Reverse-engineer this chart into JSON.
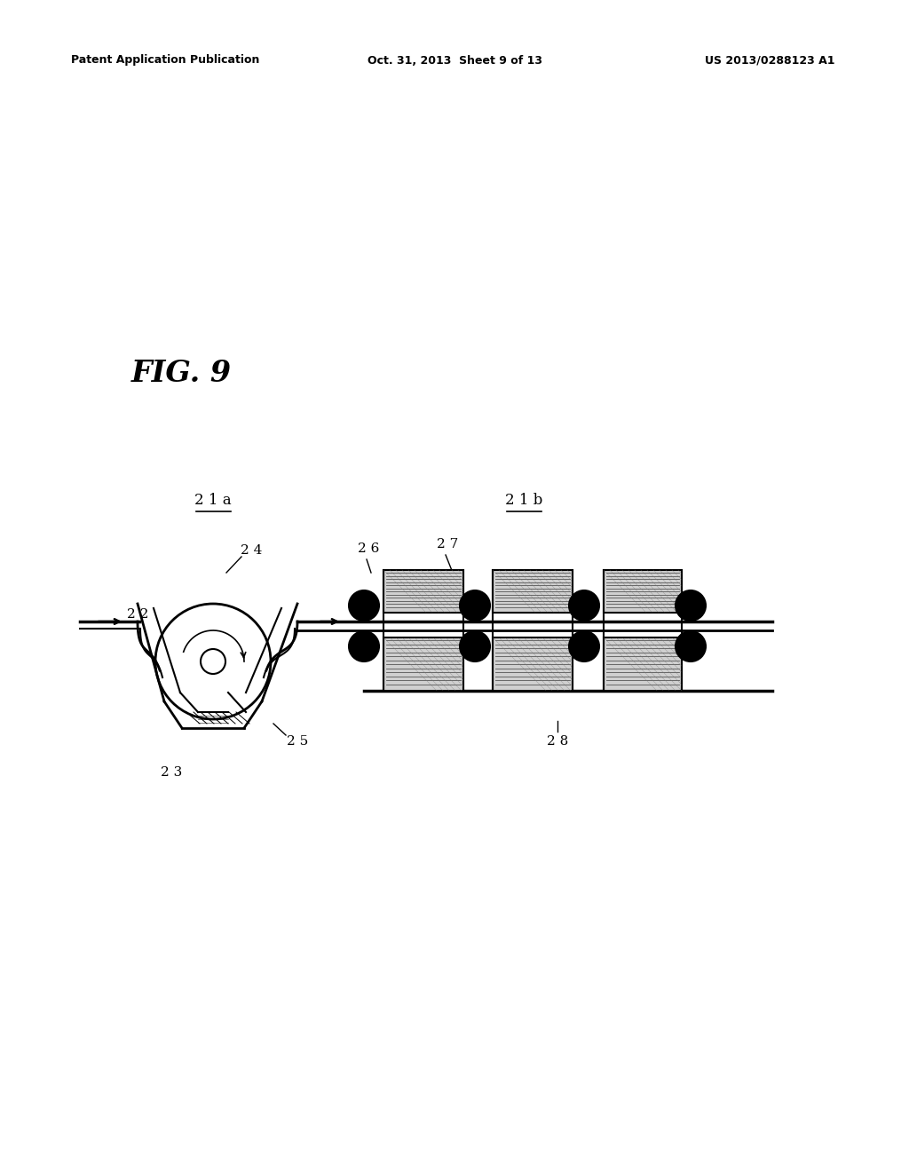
{
  "bg_color": "#ffffff",
  "line_color": "#000000",
  "fig_label": "FIG. 9",
  "header_left": "Patent Application Publication",
  "header_mid": "Oct. 31, 2013  Sheet 9 of 13",
  "header_right": "US 2013/0288123 A1"
}
